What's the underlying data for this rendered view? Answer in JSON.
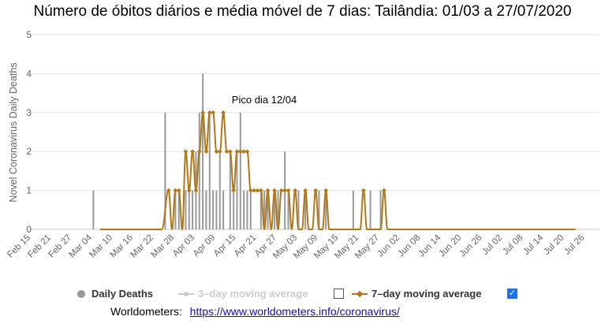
{
  "chart_data": {
    "type": "bar",
    "title": "Número de óbitos diários e média móvel de 7 dias: Tailândia: 01/03 a 27/07/2020",
    "ylabel": "Novel Coronavirus Daily Deaths",
    "xlabel": "",
    "ylim": [
      0,
      5
    ],
    "y_ticks": [
      "0",
      "1",
      "2",
      "3",
      "4",
      "5"
    ],
    "x_tick_labels": [
      "Feb 15",
      "Feb 21",
      "Feb 27",
      "Mar 04",
      "Mar 10",
      "Mar 16",
      "Mar 22",
      "Mar 28",
      "Apr 03",
      "Apr 09",
      "Apr 15",
      "Apr 21",
      "Apr 27",
      "May 03",
      "May 09",
      "May 15",
      "May 21",
      "May 27",
      "Jun 02",
      "Jun 08",
      "Jun 14",
      "Jun 20",
      "Jun 26",
      "Jul 02",
      "Jul 08",
      "Jul 14",
      "Jul 20",
      "Jul 26"
    ],
    "grid": "horizontal",
    "legend_position": "bottom",
    "annotation": "Pico dia 12/04",
    "series": [
      {
        "name": "Daily Deaths",
        "kind": "bar",
        "color": "#999999",
        "start_date": "Mar 01",
        "points": [
          [
            2,
            1
          ],
          [
            23,
            3
          ],
          [
            26,
            1
          ],
          [
            27,
            1
          ],
          [
            29,
            1
          ],
          [
            30,
            1
          ],
          [
            31,
            1
          ],
          [
            32,
            2
          ],
          [
            33,
            3
          ],
          [
            34,
            4
          ],
          [
            35,
            1
          ],
          [
            36,
            3
          ],
          [
            37,
            1
          ],
          [
            38,
            1
          ],
          [
            39,
            2
          ],
          [
            40,
            1
          ],
          [
            42,
            2
          ],
          [
            43,
            1
          ],
          [
            44,
            2
          ],
          [
            45,
            3
          ],
          [
            46,
            1
          ],
          [
            47,
            1
          ],
          [
            48,
            1
          ],
          [
            51,
            1
          ],
          [
            52,
            1
          ],
          [
            53,
            1
          ],
          [
            55,
            1
          ],
          [
            56,
            1
          ],
          [
            58,
            2
          ],
          [
            59,
            1
          ],
          [
            62,
            1
          ],
          [
            64,
            1
          ],
          [
            68,
            1
          ],
          [
            70,
            1
          ],
          [
            78,
            1
          ],
          [
            83,
            1
          ],
          [
            86,
            1
          ]
        ]
      },
      {
        "name": "3–day moving average",
        "kind": "line",
        "enabled": false,
        "color": "#cccccc"
      },
      {
        "name": "7–day moving average",
        "kind": "line",
        "enabled": true,
        "color": "#b07818",
        "points": [
          [
            4,
            0
          ],
          [
            22,
            0
          ],
          [
            24,
            1
          ],
          [
            25,
            0
          ],
          [
            26,
            1
          ],
          [
            27,
            1
          ],
          [
            28,
            0
          ],
          [
            29,
            2
          ],
          [
            30,
            1
          ],
          [
            31,
            2
          ],
          [
            32,
            1
          ],
          [
            33,
            2
          ],
          [
            34,
            3
          ],
          [
            35,
            2
          ],
          [
            36,
            3
          ],
          [
            37,
            3
          ],
          [
            38,
            2
          ],
          [
            39,
            2
          ],
          [
            40,
            3
          ],
          [
            41,
            2
          ],
          [
            42,
            2
          ],
          [
            43,
            1
          ],
          [
            44,
            2
          ],
          [
            45,
            2
          ],
          [
            46,
            2
          ],
          [
            47,
            2
          ],
          [
            48,
            1
          ],
          [
            49,
            1
          ],
          [
            50,
            1
          ],
          [
            51,
            1
          ],
          [
            52,
            0
          ],
          [
            53,
            1
          ],
          [
            54,
            0
          ],
          [
            55,
            1
          ],
          [
            56,
            0
          ],
          [
            57,
            1
          ],
          [
            58,
            1
          ],
          [
            59,
            1
          ],
          [
            60,
            0
          ],
          [
            61,
            1
          ],
          [
            62,
            0
          ],
          [
            63,
            0
          ],
          [
            64,
            1
          ],
          [
            65,
            0
          ],
          [
            66,
            0
          ],
          [
            67,
            1
          ],
          [
            68,
            0
          ],
          [
            69,
            0
          ],
          [
            70,
            1
          ],
          [
            71,
            0
          ],
          [
            80,
            0
          ],
          [
            81,
            1
          ],
          [
            82,
            0
          ],
          [
            86,
            0
          ],
          [
            87,
            1
          ],
          [
            88,
            0
          ],
          [
            143,
            0
          ]
        ]
      }
    ]
  },
  "legend": {
    "daily_deaths": "Daily Deaths",
    "ma3": "3–day moving average",
    "ma7": "7–day moving average"
  },
  "source": {
    "label": "Worldometers:",
    "url": "https://www.worldometers.info/coronavirus/"
  }
}
